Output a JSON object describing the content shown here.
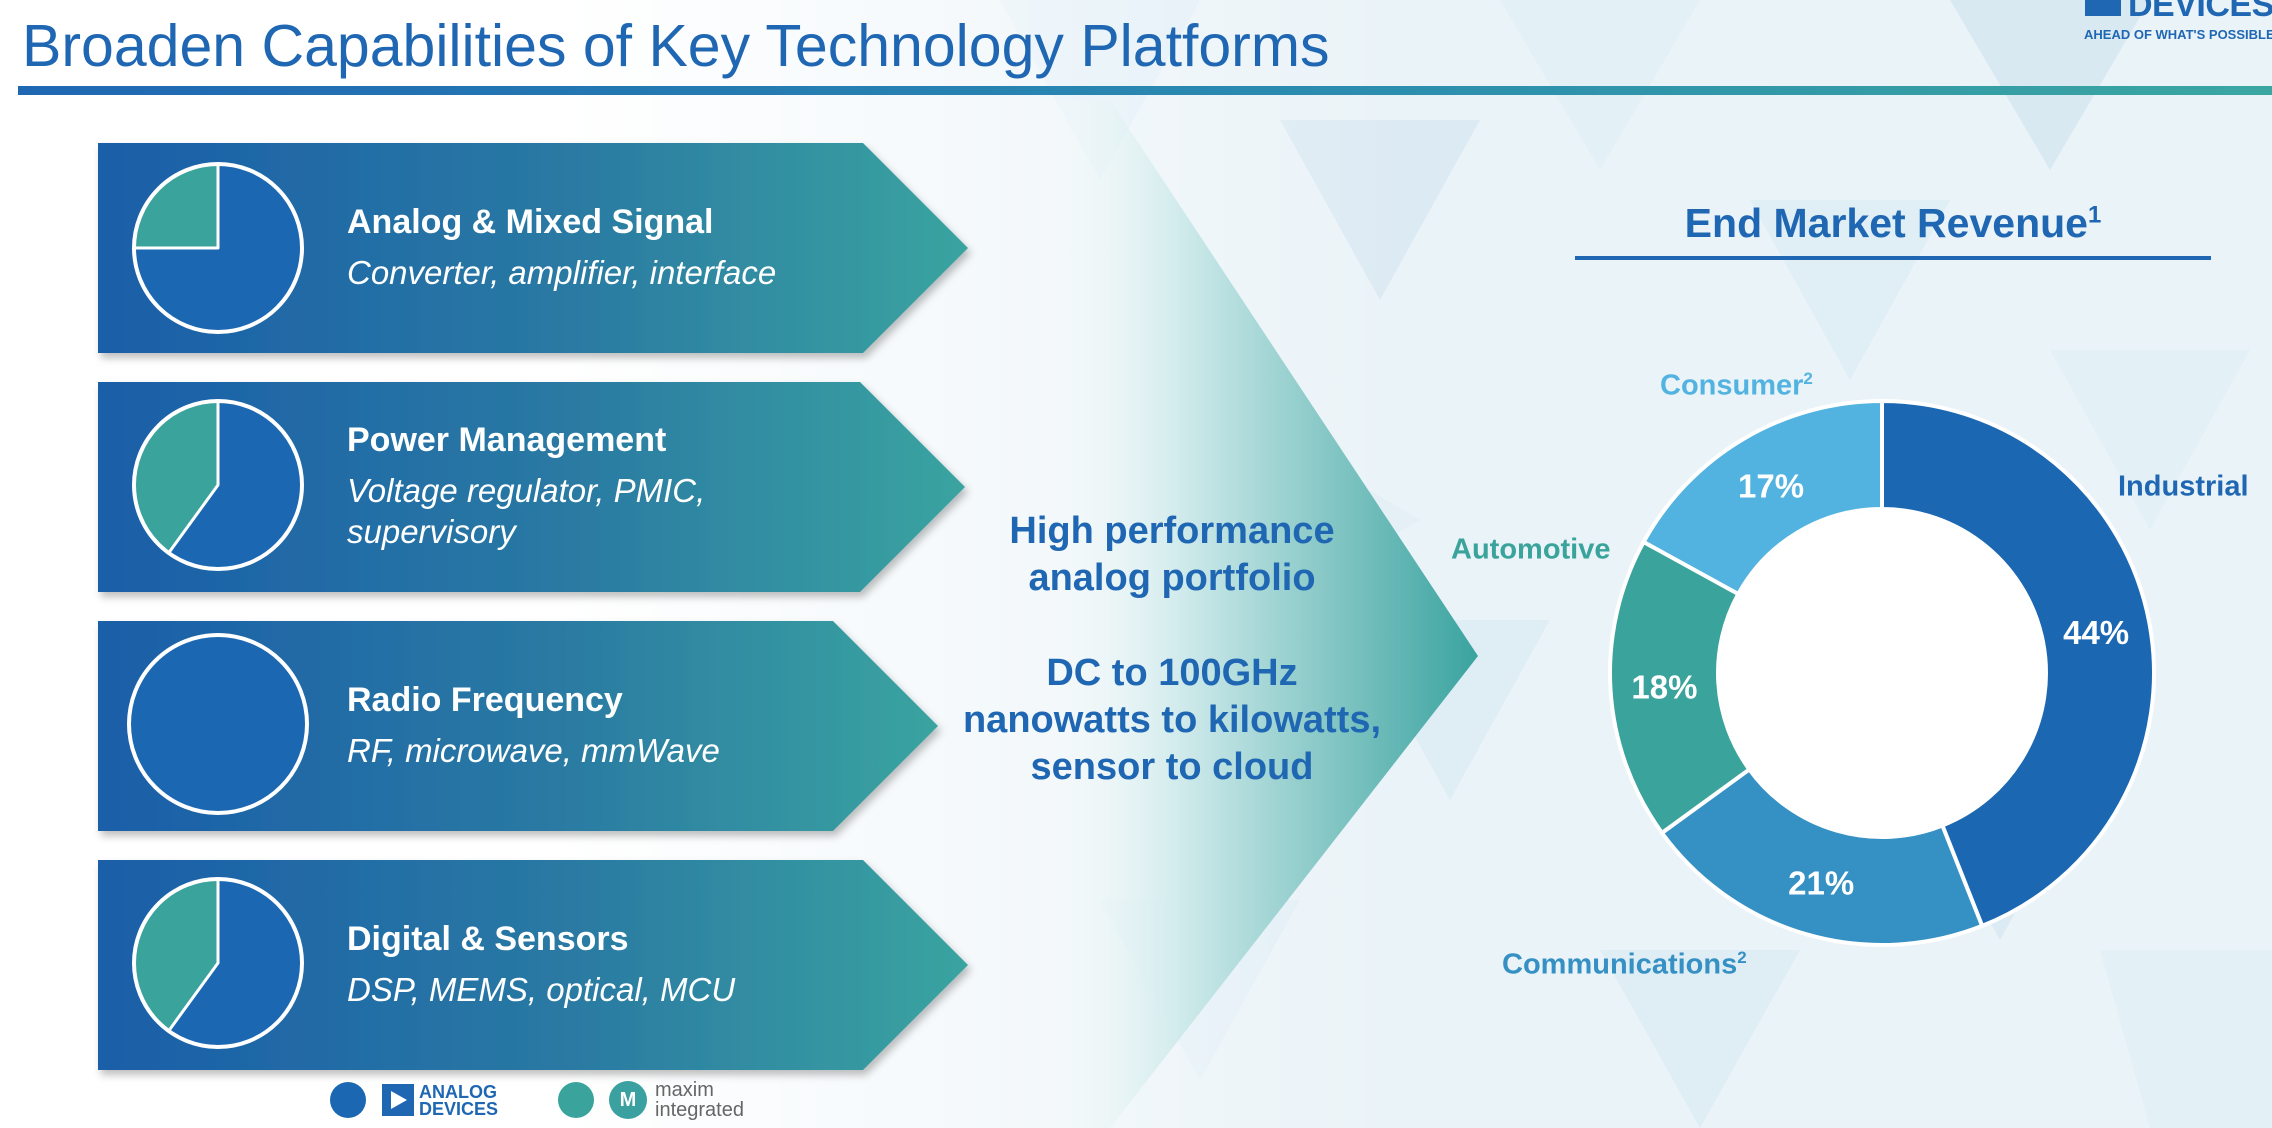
{
  "header": {
    "title": "Broaden Capabilities of Key Technology Platforms",
    "logo_name": "DEVICES",
    "logo_tagline": "AHEAD OF WHAT'S POSSIBLE™"
  },
  "platforms": [
    {
      "name": "Analog & Mixed Signal",
      "desc1": "Converter, amplifier, interface",
      "desc2": "",
      "adi_share": 0.75,
      "maxim_share": 0.25
    },
    {
      "name": "Power Management",
      "desc1": "Voltage regulator, PMIC,",
      "desc2": "supervisory",
      "adi_share": 0.6,
      "maxim_share": 0.4
    },
    {
      "name": "Radio Frequency",
      "desc1": "RF, microwave, mmWave",
      "desc2": "",
      "adi_share": 1.0,
      "maxim_share": 0.0
    },
    {
      "name": "Digital & Sensors",
      "desc1": "DSP, MEMS, optical, MCU",
      "desc2": "",
      "adi_share": 0.6,
      "maxim_share": 0.4
    }
  ],
  "center": {
    "line1": "High performance",
    "line2": "analog portfolio",
    "line3": "DC to 100GHz",
    "line4": "nanowatts to kilowatts,",
    "line5": "sensor to cloud"
  },
  "end_market": {
    "title": "End Market Revenue",
    "title_sup": "1",
    "segments": [
      {
        "name": "Industrial",
        "sup": "",
        "percent_label": "44%",
        "value": 44,
        "color": "#1b67b2",
        "label_color": "#1f67b3"
      },
      {
        "name": "Communications",
        "sup": "2",
        "percent_label": "21%",
        "value": 21,
        "color": "#3590c4",
        "label_color": "#3590c4"
      },
      {
        "name": "Automotive",
        "sup": "",
        "percent_label": "18%",
        "value": 18,
        "color": "#3aa39b",
        "label_color": "#3aa39b"
      },
      {
        "name": "Consumer",
        "sup": "2",
        "percent_label": "17%",
        "value": 17,
        "color": "#53b3e0",
        "label_color": "#53b3e0"
      }
    ]
  },
  "legend": {
    "adi_text1": "ANALOG",
    "adi_text2": "DEVICES",
    "adi_color": "#1b67b2",
    "maxim_mark": "M",
    "maxim_text1": "maxim",
    "maxim_text2": "integrated",
    "maxim_color": "#3aa39b"
  }
}
